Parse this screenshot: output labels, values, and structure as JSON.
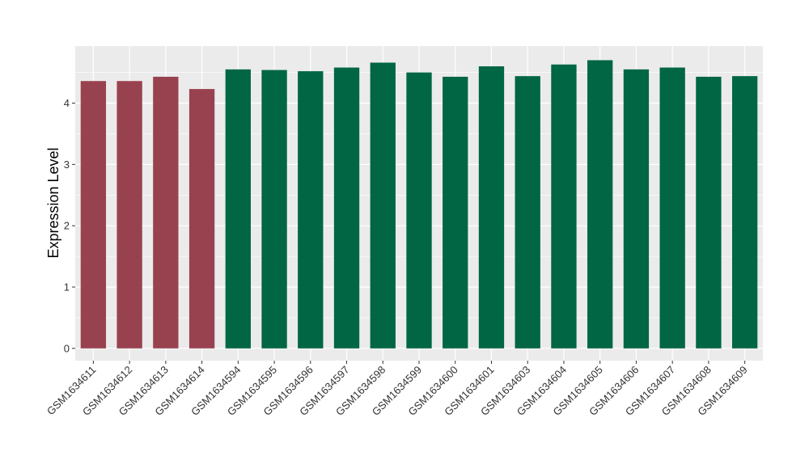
{
  "chart_data": {
    "type": "bar",
    "title": "",
    "xlabel": "",
    "ylabel": "Expression Level",
    "ylim": [
      -0.2,
      4.93
    ],
    "yticks": [
      0,
      1,
      2,
      3,
      4
    ],
    "grid": true,
    "legend": "none",
    "background": "#EBEBEB",
    "gridline_color": "#FFFFFF",
    "categories": [
      "GSM1634611",
      "GSM1634612",
      "GSM1634613",
      "GSM1634614",
      "GSM1634594",
      "GSM1634595",
      "GSM1634596",
      "GSM1634597",
      "GSM1634598",
      "GSM1634599",
      "GSM1634600",
      "GSM1634601",
      "GSM1634603",
      "GSM1634604",
      "GSM1634605",
      "GSM1634606",
      "GSM1634607",
      "GSM1634608",
      "GSM1634609"
    ],
    "values": [
      4.36,
      4.36,
      4.43,
      4.23,
      4.55,
      4.54,
      4.52,
      4.58,
      4.66,
      4.5,
      4.43,
      4.6,
      4.44,
      4.63,
      4.7,
      4.55,
      4.58,
      4.43,
      4.44
    ],
    "group_colors": [
      "#99424F",
      "#99424F",
      "#99424F",
      "#99424F",
      "#006644",
      "#006644",
      "#006644",
      "#006644",
      "#006644",
      "#006644",
      "#006644",
      "#006644",
      "#006644",
      "#006644",
      "#006644",
      "#006644",
      "#006644",
      "#006644",
      "#006644"
    ]
  }
}
